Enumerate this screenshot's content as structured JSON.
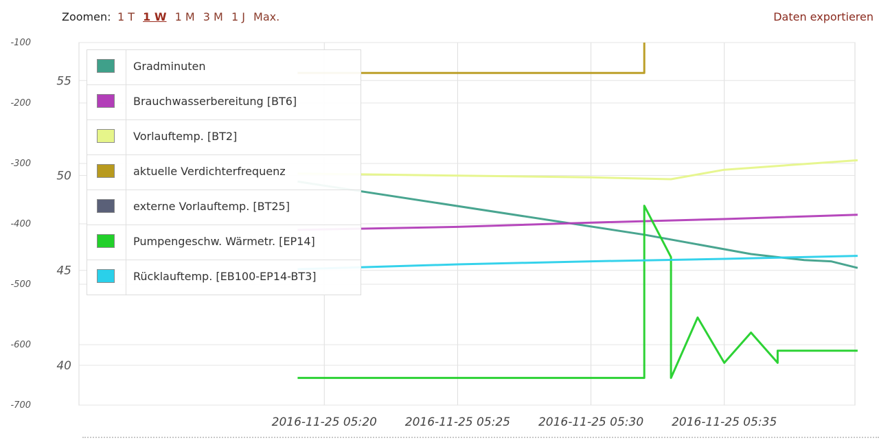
{
  "toolbar": {
    "zoom_label": "Zoomen:",
    "zoom_options": [
      "1 T",
      "1 W",
      "1 M",
      "3 M",
      "1 J",
      "Max."
    ],
    "active_zoom": "1 W",
    "export_label": "Daten exportieren"
  },
  "colors": {
    "Gradminuten": "#3fa08a",
    "Brauchwasserbereitung": "#b23eb8",
    "Vorlauftemp": "#e6f58a",
    "Verdichterfrequenz": "#b89a1e",
    "externe": "#5a6078",
    "Pumpengeschw": "#22d02a",
    "Ruecklauftemp": "#2ad0ea"
  },
  "chart_data": {
    "type": "line",
    "x_tick_labels": [
      "2016-11-25 05:20",
      "2016-11-25 05:25",
      "2016-11-25 05:30",
      "2016-11-25 05:35"
    ],
    "x_range_minutes": [
      5.18,
      5.665
    ],
    "left_axis_ticks": [
      "-100",
      "-200",
      "-300",
      "-400",
      "-500",
      "-600",
      "-700"
    ],
    "left_axis_range": [
      -700,
      -100
    ],
    "inner_axis_ticks": [
      "55",
      "50",
      "45",
      "40"
    ],
    "inner_axis_range": [
      37.9,
      57.0
    ],
    "grid": true,
    "legend_position": "top-left",
    "series": [
      {
        "name": "Gradminuten",
        "axis": "left",
        "x": [
          "05:19",
          "05:32",
          "05:36",
          "05:38",
          "05:39",
          "05:40"
        ],
        "y": [
          -330,
          -418,
          -450,
          -460,
          -462,
          -473
        ]
      },
      {
        "name": "Brauchwasserbereitung [BT6]",
        "axis": "left",
        "x": [
          "05:19",
          "05:25",
          "05:30",
          "05:35",
          "05:40"
        ],
        "y": [
          -410,
          -405,
          -398,
          -392,
          -385
        ]
      },
      {
        "name": "Vorlauftemp. [BT2]",
        "axis": "inner",
        "x": [
          "05:19",
          "05:30",
          "05:33",
          "05:35",
          "05:38",
          "05:40"
        ],
        "y": [
          50.1,
          49.9,
          49.8,
          50.3,
          50.6,
          50.8
        ]
      },
      {
        "name": "aktuelle Verdichterfrequenz",
        "axis": "inner",
        "x": [
          "05:19",
          "05:32",
          "05:32",
          "05:32"
        ],
        "y": [
          55.4,
          55.4,
          57.0,
          57.0
        ]
      },
      {
        "name": "externe Vorlauftemp. [BT25]",
        "axis": "inner",
        "x": [],
        "y": []
      },
      {
        "name": "Pumpengeschw. Wärmetr. [EP14]",
        "axis": "left",
        "x": [
          "05:19",
          "05:32",
          "05:32",
          "05:33",
          "05:33",
          "05:34",
          "05:35",
          "05:36",
          "05:37",
          "05:37",
          "05:40"
        ],
        "y": [
          -655,
          -655,
          -370,
          -455,
          -655,
          -555,
          -630,
          -580,
          -630,
          -610,
          -610
        ]
      },
      {
        "name": "Rücklauftemp. [EB100-EP14-BT3]",
        "axis": "left",
        "x": [
          "05:19",
          "05:25",
          "05:30",
          "05:35",
          "05:40"
        ],
        "y": [
          -475,
          -467,
          -462,
          -458,
          -453
        ]
      }
    ]
  }
}
